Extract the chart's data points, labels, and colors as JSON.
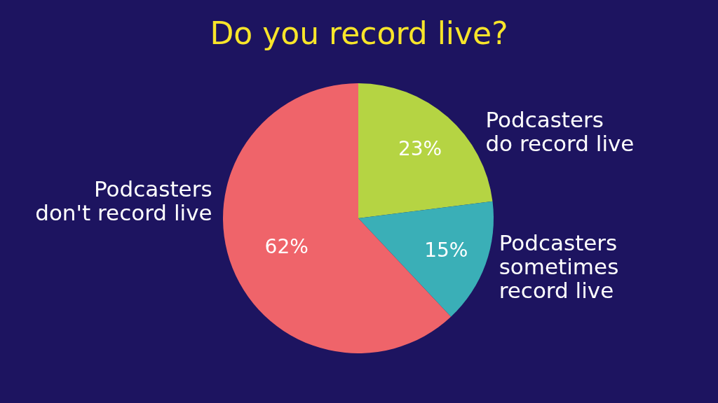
{
  "chart_data": {
    "type": "pie",
    "title": "Do you record live?",
    "categories": [
      "Podcasters\ndo record live",
      "Podcasters\nsometimes\nrecord live",
      "Podcasters\ndon't record live"
    ],
    "values": [
      23,
      15,
      62
    ],
    "value_labels": [
      "23%",
      "15%",
      "62%"
    ],
    "colors": [
      "#b5d443",
      "#3aafb7",
      "#ef646a"
    ]
  }
}
